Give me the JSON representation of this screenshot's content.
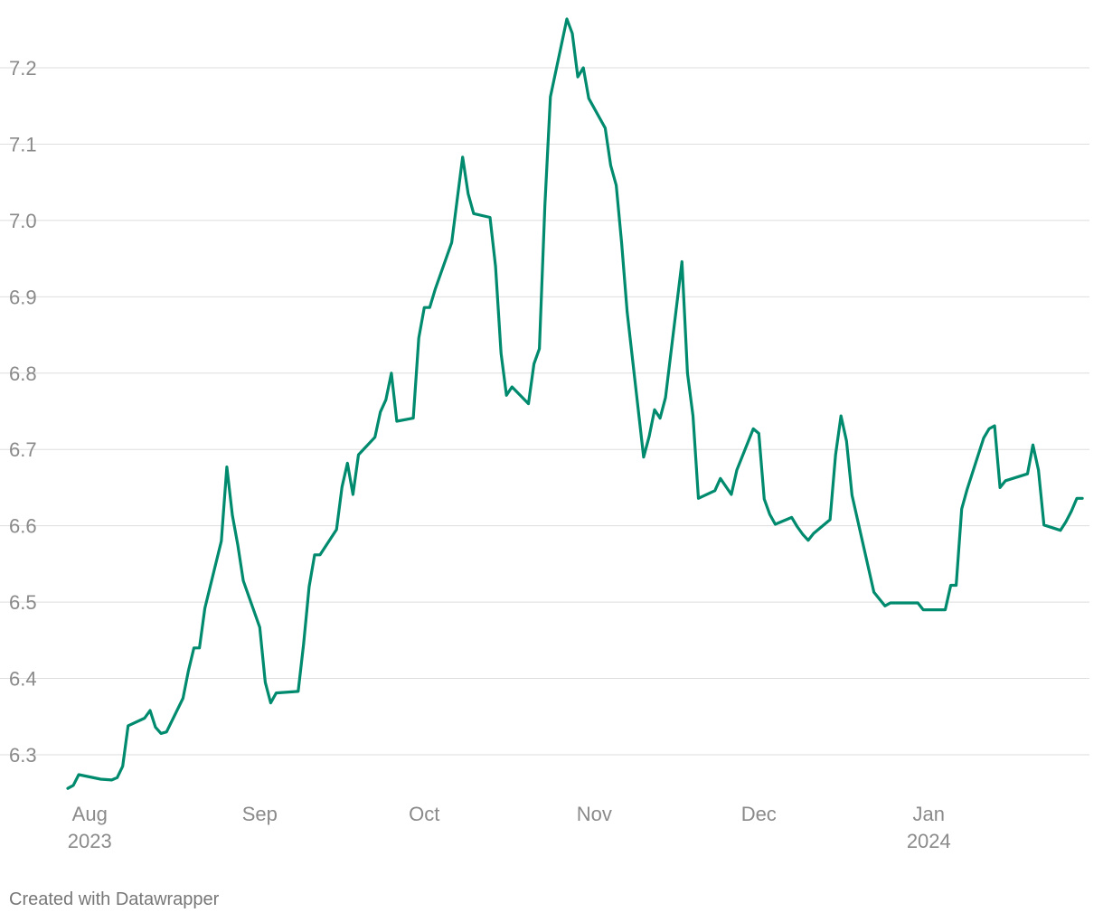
{
  "chart_data": {
    "type": "line",
    "title": "",
    "xlabel": "",
    "ylabel": "",
    "ylim": [
      6.25,
      7.28
    ],
    "xlim": [
      "2023-07-28",
      "2024-01-27"
    ],
    "grid": true,
    "yticks": [
      {
        "value": 6.3,
        "label": "6.3"
      },
      {
        "value": 6.4,
        "label": "6.4"
      },
      {
        "value": 6.5,
        "label": "6.5"
      },
      {
        "value": 6.6,
        "label": "6.6"
      },
      {
        "value": 6.7,
        "label": "6.7"
      },
      {
        "value": 6.8,
        "label": "6.8"
      },
      {
        "value": 6.9,
        "label": "6.9"
      },
      {
        "value": 7.0,
        "label": "7.0"
      },
      {
        "value": 7.1,
        "label": "7.1"
      },
      {
        "value": 7.2,
        "label": "7.2"
      }
    ],
    "xticks": [
      {
        "date": "2023-08-01",
        "label": "Aug",
        "sublabel": "2023"
      },
      {
        "date": "2023-09-01",
        "label": "Sep",
        "sublabel": ""
      },
      {
        "date": "2023-10-01",
        "label": "Oct",
        "sublabel": ""
      },
      {
        "date": "2023-11-01",
        "label": "Nov",
        "sublabel": ""
      },
      {
        "date": "2023-12-01",
        "label": "Dec",
        "sublabel": ""
      },
      {
        "date": "2024-01-01",
        "label": "Jan",
        "sublabel": "2024"
      }
    ],
    "series": [
      {
        "color": "#008a6e",
        "points": [
          [
            "2023-07-28",
            6.256
          ],
          [
            "2023-07-29",
            6.26
          ],
          [
            "2023-07-30",
            6.274
          ],
          [
            "2023-08-01",
            6.271
          ],
          [
            "2023-08-03",
            6.268
          ],
          [
            "2023-08-05",
            6.267
          ],
          [
            "2023-08-06",
            6.27
          ],
          [
            "2023-08-07",
            6.285
          ],
          [
            "2023-08-08",
            6.338
          ],
          [
            "2023-08-11",
            6.348
          ],
          [
            "2023-08-12",
            6.358
          ],
          [
            "2023-08-13",
            6.336
          ],
          [
            "2023-08-14",
            6.328
          ],
          [
            "2023-08-15",
            6.33
          ],
          [
            "2023-08-18",
            6.374
          ],
          [
            "2023-08-19",
            6.41
          ],
          [
            "2023-08-20",
            6.44
          ],
          [
            "2023-08-21",
            6.44
          ],
          [
            "2023-08-22",
            6.492
          ],
          [
            "2023-08-25",
            6.58
          ],
          [
            "2023-08-26",
            6.677
          ],
          [
            "2023-08-27",
            6.614
          ],
          [
            "2023-08-28",
            6.575
          ],
          [
            "2023-08-29",
            6.528
          ],
          [
            "2023-09-01",
            6.467
          ],
          [
            "2023-09-02",
            6.395
          ],
          [
            "2023-09-03",
            6.368
          ],
          [
            "2023-09-04",
            6.381
          ],
          [
            "2023-09-08",
            6.383
          ],
          [
            "2023-09-09",
            6.445
          ],
          [
            "2023-09-10",
            6.52
          ],
          [
            "2023-09-11",
            6.562
          ],
          [
            "2023-09-12",
            6.562
          ],
          [
            "2023-09-15",
            6.595
          ],
          [
            "2023-09-16",
            6.651
          ],
          [
            "2023-09-17",
            6.682
          ],
          [
            "2023-09-18",
            6.641
          ],
          [
            "2023-09-19",
            6.693
          ],
          [
            "2023-09-22",
            6.716
          ],
          [
            "2023-09-23",
            6.749
          ],
          [
            "2023-09-24",
            6.765
          ],
          [
            "2023-09-25",
            6.8
          ],
          [
            "2023-09-26",
            6.737
          ],
          [
            "2023-09-29",
            6.741
          ],
          [
            "2023-09-30",
            6.846
          ],
          [
            "2023-10-01",
            6.886
          ],
          [
            "2023-10-02",
            6.886
          ],
          [
            "2023-10-03",
            6.91
          ],
          [
            "2023-10-06",
            6.971
          ],
          [
            "2023-10-08",
            7.083
          ],
          [
            "2023-10-09",
            7.035
          ],
          [
            "2023-10-10",
            7.009
          ],
          [
            "2023-10-13",
            7.004
          ],
          [
            "2023-10-14",
            6.94
          ],
          [
            "2023-10-15",
            6.826
          ],
          [
            "2023-10-16",
            6.771
          ],
          [
            "2023-10-17",
            6.782
          ],
          [
            "2023-10-20",
            6.76
          ],
          [
            "2023-10-21",
            6.812
          ],
          [
            "2023-10-22",
            6.832
          ],
          [
            "2023-10-23",
            7.02
          ],
          [
            "2023-10-24",
            7.162
          ],
          [
            "2023-10-27",
            7.264
          ],
          [
            "2023-10-28",
            7.245
          ],
          [
            "2023-10-29",
            7.188
          ],
          [
            "2023-10-30",
            7.2
          ],
          [
            "2023-10-31",
            7.16
          ],
          [
            "2023-11-03",
            7.121
          ],
          [
            "2023-11-04",
            7.072
          ],
          [
            "2023-11-05",
            7.046
          ],
          [
            "2023-11-06",
            6.97
          ],
          [
            "2023-11-07",
            6.88
          ],
          [
            "2023-11-10",
            6.69
          ],
          [
            "2023-11-11",
            6.717
          ],
          [
            "2023-11-12",
            6.752
          ],
          [
            "2023-11-13",
            6.741
          ],
          [
            "2023-11-14",
            6.768
          ],
          [
            "2023-11-17",
            6.946
          ],
          [
            "2023-11-18",
            6.8
          ],
          [
            "2023-11-19",
            6.744
          ],
          [
            "2023-11-20",
            6.636
          ],
          [
            "2023-11-23",
            6.646
          ],
          [
            "2023-11-24",
            6.662
          ],
          [
            "2023-11-26",
            6.641
          ],
          [
            "2023-11-27",
            6.673
          ],
          [
            "2023-11-30",
            6.727
          ],
          [
            "2023-12-01",
            6.721
          ],
          [
            "2023-12-02",
            6.635
          ],
          [
            "2023-12-03",
            6.615
          ],
          [
            "2023-12-04",
            6.602
          ],
          [
            "2023-12-07",
            6.611
          ],
          [
            "2023-12-08",
            6.599
          ],
          [
            "2023-12-09",
            6.589
          ],
          [
            "2023-12-10",
            6.581
          ],
          [
            "2023-12-11",
            6.59
          ],
          [
            "2023-12-14",
            6.608
          ],
          [
            "2023-12-15",
            6.693
          ],
          [
            "2023-12-16",
            6.744
          ],
          [
            "2023-12-17",
            6.711
          ],
          [
            "2023-12-18",
            6.64
          ],
          [
            "2023-12-22",
            6.513
          ],
          [
            "2023-12-24",
            6.495
          ],
          [
            "2023-12-25",
            6.499
          ],
          [
            "2023-12-30",
            6.499
          ],
          [
            "2023-12-31",
            6.49
          ],
          [
            "2024-01-04",
            6.49
          ],
          [
            "2024-01-05",
            6.522
          ],
          [
            "2024-01-06",
            6.522
          ],
          [
            "2024-01-07",
            6.622
          ],
          [
            "2024-01-08",
            6.648
          ],
          [
            "2024-01-11",
            6.715
          ],
          [
            "2024-01-12",
            6.727
          ],
          [
            "2024-01-13",
            6.731
          ],
          [
            "2024-01-14",
            6.65
          ],
          [
            "2024-01-15",
            6.659
          ],
          [
            "2024-01-19",
            6.668
          ],
          [
            "2024-01-20",
            6.706
          ],
          [
            "2024-01-21",
            6.673
          ],
          [
            "2024-01-22",
            6.601
          ],
          [
            "2024-01-25",
            6.594
          ],
          [
            "2024-01-26",
            6.605
          ],
          [
            "2024-01-27",
            6.619
          ],
          [
            "2024-01-28",
            6.636
          ],
          [
            "2024-01-29",
            6.636
          ]
        ]
      }
    ]
  },
  "footer": {
    "credit": "Created with Datawrapper"
  }
}
